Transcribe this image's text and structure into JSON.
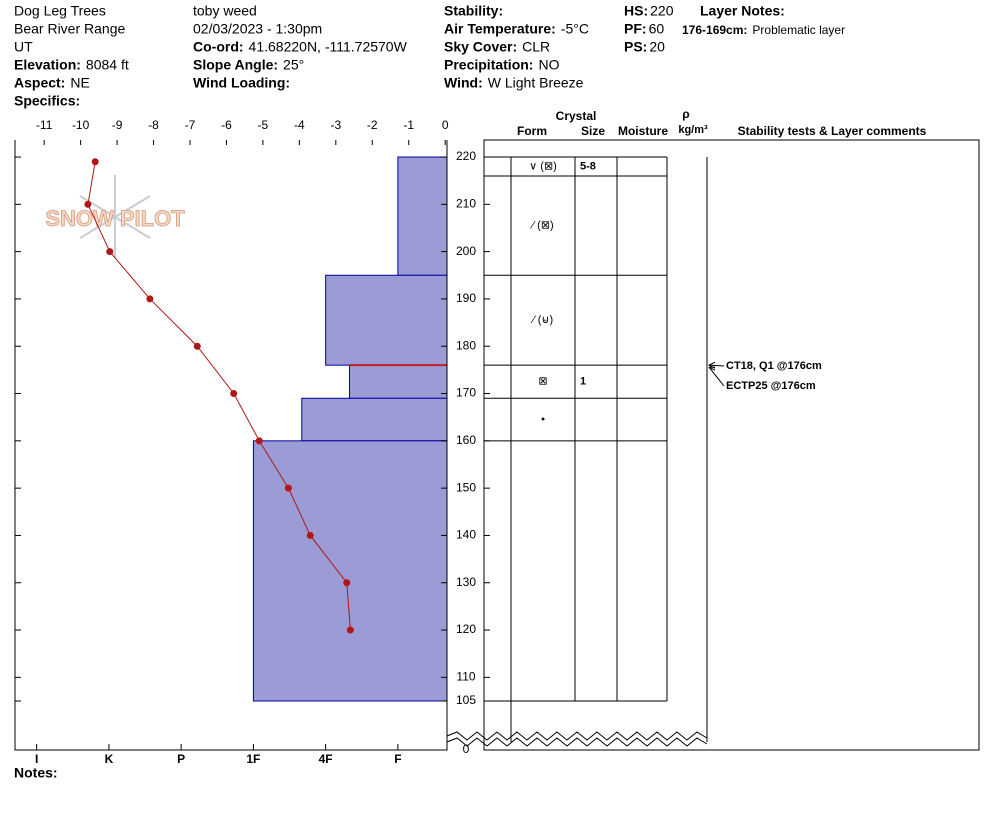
{
  "header": {
    "col1": [
      "Dog Leg Trees",
      "Bear River Range",
      "UT"
    ],
    "fields1": [
      {
        "label": "Elevation:",
        "value": "8084 ft"
      },
      {
        "label": "Aspect:",
        "value": "NE"
      },
      {
        "label": "Specifics:"
      }
    ],
    "observer": "toby weed",
    "datetime": "02/03/2023 - 1:30pm",
    "fields2": [
      {
        "label": "Co-ord:",
        "value": "41.68220N, -111.72570W"
      },
      {
        "label": "Slope Angle:",
        "value": "25°"
      },
      {
        "label": "Wind Loading:"
      }
    ],
    "fields3": [
      {
        "label": "Stability:"
      },
      {
        "label": "Air Temperature:",
        "value": "-5°C"
      },
      {
        "label": "Sky Cover:",
        "value": "CLR"
      },
      {
        "label": "Precipitation:",
        "value": "NO"
      },
      {
        "label": "Wind:",
        "value": "W Light Breeze"
      }
    ],
    "fields4": [
      {
        "label": "HS:",
        "value": 220
      },
      {
        "label": "PF:",
        "value": 60
      },
      {
        "label": "PS:",
        "value": 20
      }
    ],
    "layer_notes_title": "Layer Notes:",
    "layer_notes": [
      {
        "label": "176-169cm:",
        "value": "Problematic layer"
      }
    ]
  },
  "chart_data": {
    "type": "snow-profile",
    "logo": "SNOW PILOT",
    "xlim": [
      -11.8,
      0.05
    ],
    "xticks": [
      -11,
      -10,
      -9,
      -8,
      -7,
      -6,
      -5,
      -4,
      -3,
      -2,
      -1,
      0
    ],
    "ylim": [
      0,
      223.6
    ],
    "y_break": [
      0,
      105
    ],
    "yticks": [
      220,
      210,
      200,
      190,
      180,
      170,
      160,
      150,
      140,
      130,
      120,
      110,
      105,
      0
    ],
    "hardness_lim": [
      6.3,
      0.32
    ],
    "hardness_ticks": [
      {
        "value": 6,
        "label": "I"
      },
      {
        "value": 5,
        "label": "K"
      },
      {
        "value": 4,
        "label": "P"
      },
      {
        "value": 3,
        "label": "1F"
      },
      {
        "value": 2,
        "label": "4F"
      },
      {
        "value": 1,
        "label": "F"
      }
    ],
    "layers": [
      {
        "top": 220,
        "bottom": 195,
        "hardness": 1
      },
      {
        "top": 195,
        "bottom": 176,
        "hardness": 2
      },
      {
        "top": 176,
        "bottom": 169,
        "hardness": 1.67
      },
      {
        "top": 169,
        "bottom": 160,
        "hardness": 2.33
      },
      {
        "top": 160,
        "bottom": 105,
        "hardness": 3
      }
    ],
    "layer_color": "#9b9bd6",
    "layer_edge": "#0000a0",
    "weak_layer": 176,
    "weak_layer_color": "#c81e1e",
    "temperature": {
      "color": "#b01818",
      "heights": [
        219,
        210,
        200,
        190,
        180,
        170,
        160,
        150,
        140,
        130,
        120
      ],
      "temps": [
        -9.6,
        -9.8,
        -9.2,
        -8.1,
        -6.8,
        -5.8,
        -5.1,
        -4.3,
        -3.7,
        -2.7,
        -2.6
      ]
    },
    "table": {
      "headers": {
        "crystal": "Crystal",
        "form": "Form",
        "size": "Size",
        "moisture": "Moisture",
        "rho": "ρ",
        "density_unit": "kg/m³",
        "comments": "Stability tests & Layer comments"
      },
      "rows": [
        {
          "top": 220,
          "bottom": 216,
          "form": "∨ (⊠)",
          "size": "5-8"
        },
        {
          "top": 216,
          "bottom": 195,
          "form": "⁄ (⊠)"
        },
        {
          "top": 195,
          "bottom": 176,
          "form": "⁄ (⊌)"
        },
        {
          "top": 176,
          "bottom": 169,
          "form": "⊠",
          "size": "1"
        },
        {
          "top": 169,
          "bottom": 160,
          "form": "•"
        },
        {
          "top": 160,
          "bottom": 105
        }
      ],
      "tests": [
        {
          "height": 176,
          "label": "CT18, Q1 @176cm"
        },
        {
          "height": 176,
          "label": "ECTP25 @176cm"
        }
      ]
    },
    "notes_label": "Notes:"
  }
}
